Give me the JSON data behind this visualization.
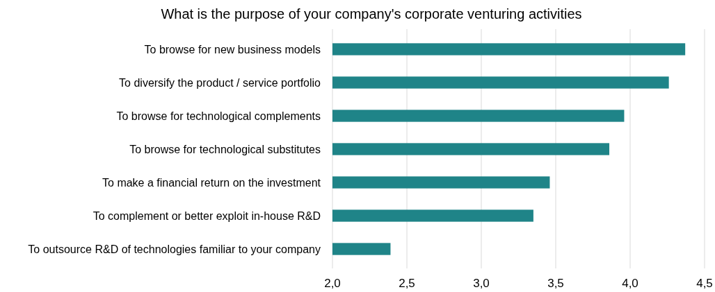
{
  "chart_data": {
    "type": "bar",
    "orientation": "horizontal",
    "title": "What is the purpose of your company's corporate venturing activities",
    "categories": [
      "To browse for new business models",
      "To diversify the product / service portfolio",
      "To browse for technological complements",
      "To browse for technological substitutes",
      "To make a financial return on the investment",
      "To complement or better exploit in-house R&D",
      "To outsource R&D of technologies familiar to your company"
    ],
    "values": [
      4.37,
      4.26,
      3.96,
      3.86,
      3.46,
      3.35,
      2.39
    ],
    "color": "#1f8488",
    "xlim": [
      2,
      4.5
    ],
    "xticks": [
      {
        "value": 2,
        "label": "2,0"
      },
      {
        "value": 2.5,
        "label": "2,5"
      },
      {
        "value": 3,
        "label": "3,0"
      },
      {
        "value": 3.5,
        "label": "3,5"
      },
      {
        "value": 4,
        "label": "4,0"
      },
      {
        "value": 4.5,
        "label": "4,5"
      }
    ],
    "grid": "x"
  }
}
